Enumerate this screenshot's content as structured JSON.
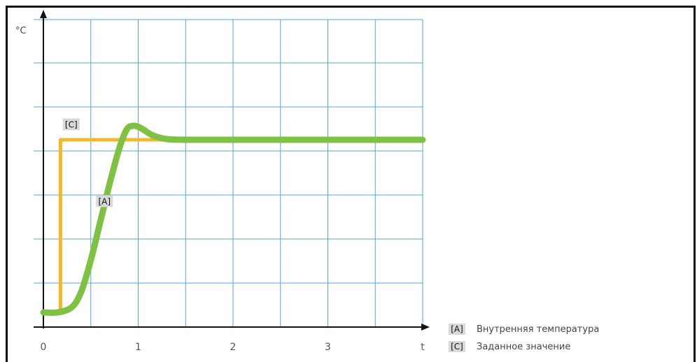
{
  "chart_data": {
    "type": "line",
    "ylabel": "°C",
    "xlabel": "t",
    "x_ticks": [
      "0",
      "1",
      "2",
      "3"
    ],
    "xlim": [
      0,
      4
    ],
    "ylim": [
      0,
      7
    ],
    "grid": true,
    "legend_position": "bottom-right",
    "series": [
      {
        "name": "Внутренняя температура",
        "tag": "[A]",
        "color": "#7ec242",
        "x": [
          0,
          0.15,
          0.3,
          0.4,
          0.5,
          0.6,
          0.7,
          0.8,
          0.88,
          0.95,
          1.0,
          1.05,
          1.15,
          1.3,
          1.5,
          2.0,
          3.0,
          4.0
        ],
        "y": [
          0.3,
          0.3,
          0.45,
          0.9,
          1.8,
          2.9,
          4.0,
          5.0,
          5.55,
          5.65,
          5.62,
          5.55,
          5.38,
          5.27,
          5.25,
          5.25,
          5.25,
          5.25
        ]
      },
      {
        "name": "Заданное значение",
        "tag": "[C]",
        "color": "#f5b829",
        "x": [
          0,
          0.18,
          0.18,
          4.0
        ],
        "y": [
          0.3,
          0.3,
          5.25,
          5.25
        ]
      }
    ],
    "annotations": [
      {
        "label": "[C]",
        "x": 0.22,
        "y": 5.6
      },
      {
        "label": "[A]",
        "x": 0.57,
        "y": 3.4
      }
    ]
  }
}
